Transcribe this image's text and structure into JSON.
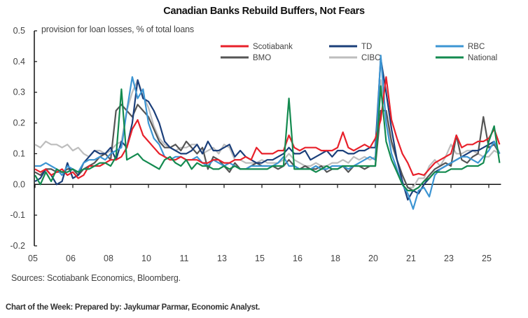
{
  "chart_data": {
    "type": "line",
    "title": "Canadian Banks Rebuild Buffers, Not Fears",
    "ylabel": "provision for loan losses, % of total loans",
    "xlabel": "",
    "ylim": [
      -0.2,
      0.5
    ],
    "y_ticks": [
      0.5,
      0.4,
      0.3,
      0.2,
      0.1,
      0.0,
      -0.1,
      -0.2
    ],
    "y_tick_labels": [
      "0.5",
      "0.4",
      "0.3",
      "0.2",
      "0.1",
      "0.0",
      "-0.1",
      "-0.2"
    ],
    "x_tick_labels": [
      "05",
      "06",
      "08",
      "10",
      "11",
      "13",
      "15",
      "16",
      "18",
      "20",
      "21",
      "23",
      "25"
    ],
    "grid": false,
    "legend_position": "top-right",
    "series": [
      {
        "name": "Scotiabank",
        "color": "#e8202a",
        "values": [
          0.05,
          0.04,
          0.05,
          0.03,
          0.04,
          0.05,
          0.03,
          0.04,
          0.02,
          0.03,
          0.06,
          0.06,
          0.06,
          0.07,
          0.08,
          0.08,
          0.09,
          0.12,
          0.18,
          0.21,
          0.16,
          0.14,
          0.12,
          0.1,
          0.09,
          0.08,
          0.08,
          0.09,
          0.08,
          0.08,
          0.08,
          0.07,
          0.07,
          0.08,
          0.08,
          0.07,
          0.07,
          0.08,
          0.08,
          0.09,
          0.08,
          0.12,
          0.1,
          0.1,
          0.1,
          0.11,
          0.11,
          0.16,
          0.12,
          0.11,
          0.12,
          0.12,
          0.12,
          0.11,
          0.11,
          0.11,
          0.12,
          0.17,
          0.12,
          0.11,
          0.12,
          0.13,
          0.12,
          0.15,
          0.21,
          0.35,
          0.21,
          0.15,
          0.1,
          0.07,
          0.03,
          0.035,
          0.03,
          0.05,
          0.07,
          0.08,
          0.09,
          0.1,
          0.16,
          0.12,
          0.13,
          0.13,
          0.14,
          0.14,
          0.15,
          0.18,
          0.13
        ]
      },
      {
        "name": "TD",
        "color": "#1b3f7a",
        "values": [
          0.01,
          0.02,
          0.05,
          0.03,
          0.0,
          0.01,
          0.07,
          0.02,
          0.03,
          0.07,
          0.09,
          0.11,
          0.1,
          0.1,
          0.12,
          0.08,
          0.14,
          0.12,
          0.2,
          0.34,
          0.28,
          0.27,
          0.24,
          0.2,
          0.14,
          0.12,
          0.11,
          0.1,
          0.1,
          0.11,
          0.13,
          0.1,
          0.14,
          0.11,
          0.11,
          0.12,
          0.13,
          0.09,
          0.11,
          0.09,
          0.08,
          0.07,
          0.07,
          0.08,
          0.08,
          0.09,
          0.1,
          0.12,
          0.1,
          0.1,
          0.11,
          0.08,
          0.09,
          0.1,
          0.11,
          0.09,
          0.11,
          0.11,
          0.1,
          0.1,
          0.11,
          0.11,
          0.12,
          0.12,
          0.41,
          0.3,
          0.18,
          0.08,
          0.01,
          -0.05,
          -0.02,
          -0.03,
          0.0,
          0.02,
          0.04,
          0.05,
          0.06,
          0.07,
          0.08,
          0.09,
          0.1,
          0.11,
          0.11,
          0.12,
          0.13,
          0.14,
          0.1
        ]
      },
      {
        "name": "RBC",
        "color": "#3c95d3",
        "values": [
          0.06,
          0.06,
          0.07,
          0.06,
          0.05,
          0.03,
          0.06,
          0.05,
          0.04,
          0.07,
          0.08,
          0.08,
          0.09,
          0.08,
          0.1,
          0.11,
          0.12,
          0.24,
          0.35,
          0.28,
          0.31,
          0.2,
          0.15,
          0.13,
          0.09,
          0.08,
          0.09,
          0.09,
          0.08,
          0.08,
          0.09,
          0.07,
          0.06,
          0.08,
          0.07,
          0.06,
          0.07,
          0.06,
          0.05,
          0.05,
          0.06,
          0.06,
          0.06,
          0.06,
          0.06,
          0.07,
          0.09,
          0.06,
          0.06,
          0.05,
          0.05,
          0.05,
          0.06,
          0.05,
          0.05,
          0.06,
          0.06,
          0.06,
          0.05,
          0.06,
          0.07,
          0.08,
          0.09,
          0.08,
          0.42,
          0.2,
          0.1,
          0.05,
          0.0,
          -0.03,
          -0.08,
          -0.02,
          -0.01,
          -0.04,
          0.03,
          0.05,
          0.06,
          0.07,
          0.08,
          0.09,
          0.09,
          0.08,
          0.07,
          0.09,
          0.11,
          0.14,
          0.1
        ]
      },
      {
        "name": "BMO",
        "color": "#555555",
        "values": [
          0.04,
          0.03,
          0.05,
          0.05,
          0.04,
          0.04,
          0.05,
          0.05,
          0.03,
          0.05,
          0.06,
          0.07,
          0.09,
          0.1,
          0.08,
          0.24,
          0.26,
          0.24,
          0.22,
          0.26,
          0.24,
          0.22,
          0.18,
          0.14,
          0.12,
          0.12,
          0.13,
          0.11,
          0.14,
          0.12,
          0.1,
          0.12,
          0.05,
          0.09,
          0.08,
          0.06,
          0.04,
          0.07,
          0.05,
          0.05,
          0.06,
          0.07,
          0.06,
          0.06,
          0.06,
          0.05,
          0.06,
          0.08,
          0.06,
          0.05,
          0.06,
          0.05,
          0.05,
          0.06,
          0.04,
          0.05,
          0.05,
          0.06,
          0.04,
          0.06,
          0.06,
          0.05,
          0.06,
          0.06,
          0.24,
          0.24,
          0.14,
          0.08,
          0.03,
          -0.01,
          -0.02,
          -0.01,
          0.01,
          0.03,
          0.05,
          0.06,
          0.07,
          0.06,
          0.16,
          0.08,
          0.07,
          0.09,
          0.1,
          0.22,
          0.12,
          0.13,
          0.1
        ]
      },
      {
        "name": "CIBC",
        "color": "#bdbdbd",
        "values": [
          0.13,
          0.12,
          0.14,
          0.13,
          0.13,
          0.12,
          0.13,
          0.11,
          0.12,
          0.1,
          0.09,
          0.11,
          0.11,
          0.1,
          0.11,
          0.13,
          0.14,
          0.24,
          0.3,
          0.34,
          0.29,
          0.25,
          0.19,
          0.15,
          0.13,
          0.12,
          0.11,
          0.12,
          0.12,
          0.13,
          0.13,
          0.1,
          0.11,
          0.12,
          0.1,
          0.13,
          0.12,
          0.08,
          0.08,
          0.07,
          0.07,
          0.07,
          0.08,
          0.07,
          0.07,
          0.07,
          0.08,
          0.1,
          0.08,
          0.07,
          0.06,
          0.06,
          0.07,
          0.06,
          0.06,
          0.07,
          0.07,
          0.08,
          0.07,
          0.09,
          0.08,
          0.09,
          0.08,
          0.09,
          0.34,
          0.22,
          0.13,
          0.08,
          0.03,
          -0.01,
          -0.01,
          0.02,
          0.02,
          0.06,
          0.08,
          0.06,
          0.09,
          0.13,
          0.1,
          0.1,
          0.11,
          0.11,
          0.1,
          0.09,
          0.09,
          0.11,
          0.1
        ]
      },
      {
        "name": "National",
        "color": "#138a4f",
        "values": [
          0.03,
          0.0,
          0.04,
          0.01,
          0.05,
          0.04,
          0.04,
          0.05,
          0.04,
          0.05,
          0.05,
          0.06,
          0.07,
          0.07,
          0.06,
          0.09,
          0.31,
          0.08,
          0.09,
          0.1,
          0.08,
          0.07,
          0.06,
          0.05,
          0.08,
          0.09,
          0.07,
          0.06,
          0.08,
          0.05,
          0.07,
          0.06,
          0.06,
          0.05,
          0.05,
          0.06,
          0.05,
          0.06,
          0.05,
          0.05,
          0.05,
          0.05,
          0.05,
          0.05,
          0.06,
          0.06,
          0.06,
          0.28,
          0.05,
          0.05,
          0.05,
          0.05,
          0.04,
          0.05,
          0.06,
          0.05,
          0.05,
          0.06,
          0.06,
          0.06,
          0.06,
          0.06,
          0.06,
          0.06,
          0.32,
          0.14,
          0.08,
          0.04,
          0.0,
          -0.02,
          -0.02,
          -0.01,
          0.01,
          0.02,
          0.04,
          0.04,
          0.04,
          0.05,
          0.05,
          0.05,
          0.06,
          0.06,
          0.06,
          0.07,
          0.14,
          0.19,
          0.07
        ]
      }
    ]
  },
  "sources": "Sources: Scotiabank Economics, Bloomberg.",
  "footer": "Chart of the Week: Prepared by: Jaykumar Parmar, Economic Analyst."
}
